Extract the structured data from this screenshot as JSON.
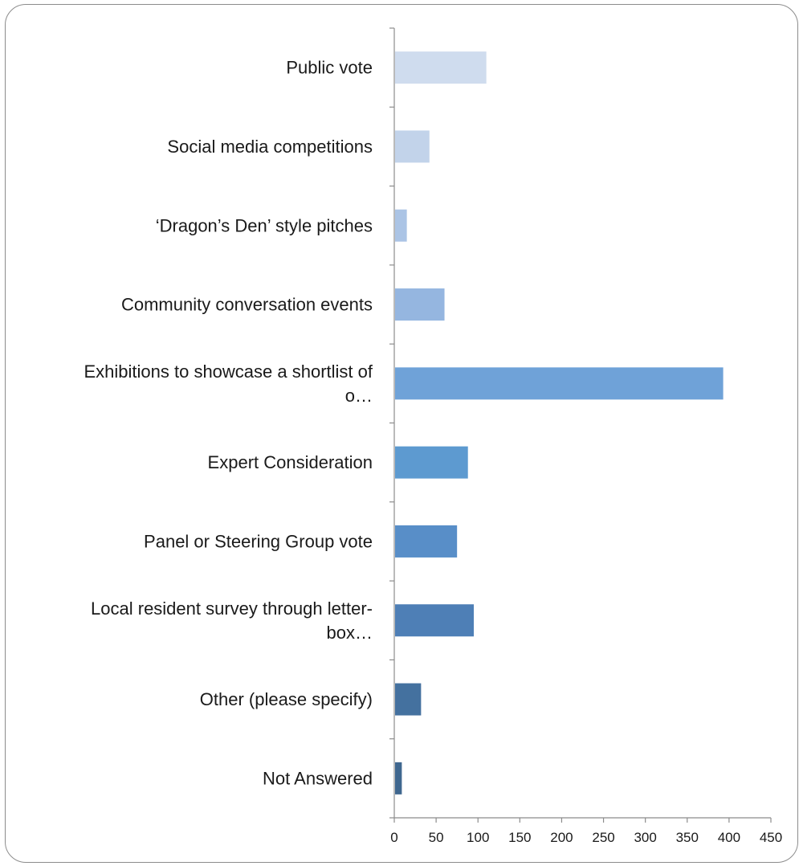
{
  "chart_data": {
    "type": "bar",
    "orientation": "horizontal",
    "categories": [
      [
        "Public vote"
      ],
      [
        "Social media competitions"
      ],
      [
        "‘Dragon’s Den’ style pitches"
      ],
      [
        "Community conversation events"
      ],
      [
        "Exhibitions to showcase a shortlist of",
        "o…"
      ],
      [
        "Expert Consideration"
      ],
      [
        "Panel or Steering Group vote"
      ],
      [
        "Local resident survey through letter-",
        "box…"
      ],
      [
        "Other (please specify)"
      ],
      [
        "Not Answered"
      ]
    ],
    "values": [
      110,
      42,
      15,
      60,
      393,
      88,
      75,
      95,
      32,
      9
    ],
    "colors": [
      "#cfdcee",
      "#c2d3ea",
      "#abc4e5",
      "#95b6e0",
      "#6fa2d8",
      "#5d9ad0",
      "#588ec8",
      "#4e7fb6",
      "#44719f",
      "#3f678f"
    ],
    "xlim": [
      0,
      450
    ],
    "xticks": [
      0,
      50,
      100,
      150,
      200,
      250,
      300,
      350,
      400,
      450
    ],
    "grid": false,
    "legend": "none",
    "title": "",
    "xlabel": "",
    "ylabel": ""
  }
}
